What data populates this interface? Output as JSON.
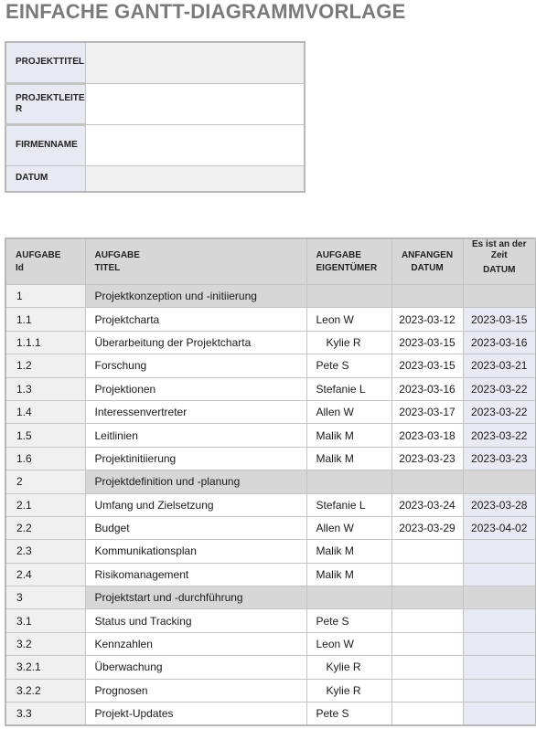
{
  "page": {
    "title": "EINFACHE GANTT-DIAGRAMMVORLAGE"
  },
  "info": {
    "project_title_label": "PROJEKTTITEL",
    "project_lead_label_1": "PROJEKTLEITE",
    "project_lead_label_2": "R",
    "company_label": "FIRMENNAME",
    "date_label": "DATUM"
  },
  "table": {
    "headers": {
      "id_1": "AUFGABE",
      "id_2": "Id",
      "title_1": "AUFGABE",
      "title_2": "TITEL",
      "owner_1": "AUFGABE",
      "owner_2": "EIGENTÜMER",
      "start_1": "ANFANGEN",
      "start_2": "DATUM",
      "due_1": "Es ist an der",
      "due_2": "Zeit",
      "due_3": "DATUM"
    },
    "rows": [
      {
        "id": "1",
        "title": "Projektkonzeption und -initiierung",
        "owner": "",
        "start": "",
        "due": "",
        "level": 1,
        "phase": true
      },
      {
        "id": "1.1",
        "title": "Projektcharta",
        "owner": "Leon W",
        "start": "2023-03-12",
        "due": "2023-03-15",
        "level": 2
      },
      {
        "id": "1.1.1",
        "title": "Überarbeitung der Projektcharta",
        "owner": "Kylie R",
        "start": "2023-03-15",
        "due": "2023-03-16",
        "level": 3
      },
      {
        "id": "1.2",
        "title": "Forschung",
        "owner": "Pete S",
        "start": "2023-03-15",
        "due": "2023-03-21",
        "level": 2
      },
      {
        "id": "1.3",
        "title": "Projektionen",
        "owner": "Stefanie L",
        "start": "2023-03-16",
        "due": "2023-03-22",
        "level": 2
      },
      {
        "id": "1.4",
        "title": "Interessenvertreter",
        "owner": "Allen W",
        "start": "2023-03-17",
        "due": "2023-03-22",
        "level": 2
      },
      {
        "id": "1.5",
        "title": "Leitlinien",
        "owner": "Malik M",
        "start": "2023-03-18",
        "due": "2023-03-22",
        "level": 2
      },
      {
        "id": "1.6",
        "title": "Projektinitiierung",
        "owner": "Malik M",
        "start": "2023-03-23",
        "due": "2023-03-23",
        "level": 2
      },
      {
        "id": "2",
        "title": "Projektdefinition und -planung",
        "owner": "",
        "start": "",
        "due": "",
        "level": 1,
        "phase": true
      },
      {
        "id": "2.1",
        "title": "Umfang und Zielsetzung",
        "owner": "Stefanie L",
        "start": "2023-03-24",
        "due": "2023-03-28",
        "level": 2
      },
      {
        "id": "2.2",
        "title": "Budget",
        "owner": "Allen W",
        "start": "2023-03-29",
        "due": "2023-04-02",
        "level": 2
      },
      {
        "id": "2.3",
        "title": "Kommunikationsplan",
        "owner": "Malik M",
        "start": "",
        "due": "",
        "level": 2
      },
      {
        "id": "2.4",
        "title": "Risikomanagement",
        "owner": "Malik M",
        "start": "",
        "due": "",
        "level": 2
      },
      {
        "id": "3",
        "title": "Projektstart und -durchführung",
        "owner": "",
        "start": "",
        "due": "",
        "level": 1,
        "phase": true
      },
      {
        "id": "3.1",
        "title": "Status und Tracking",
        "owner": "Pete S",
        "start": "",
        "due": "",
        "level": 2
      },
      {
        "id": "3.2",
        "title": "Kennzahlen",
        "owner": "Leon W",
        "start": "",
        "due": "",
        "level": 2
      },
      {
        "id": "3.2.1",
        "title": "Überwachung",
        "owner": "Kylie R",
        "start": "",
        "due": "",
        "level": 3
      },
      {
        "id": "3.2.2",
        "title": "Prognosen",
        "owner": "Kylie R",
        "start": "",
        "due": "",
        "level": 3
      },
      {
        "id": "3.3",
        "title": "Projekt-Updates",
        "owner": "Pete S",
        "start": "",
        "due": "",
        "level": 2
      }
    ]
  }
}
